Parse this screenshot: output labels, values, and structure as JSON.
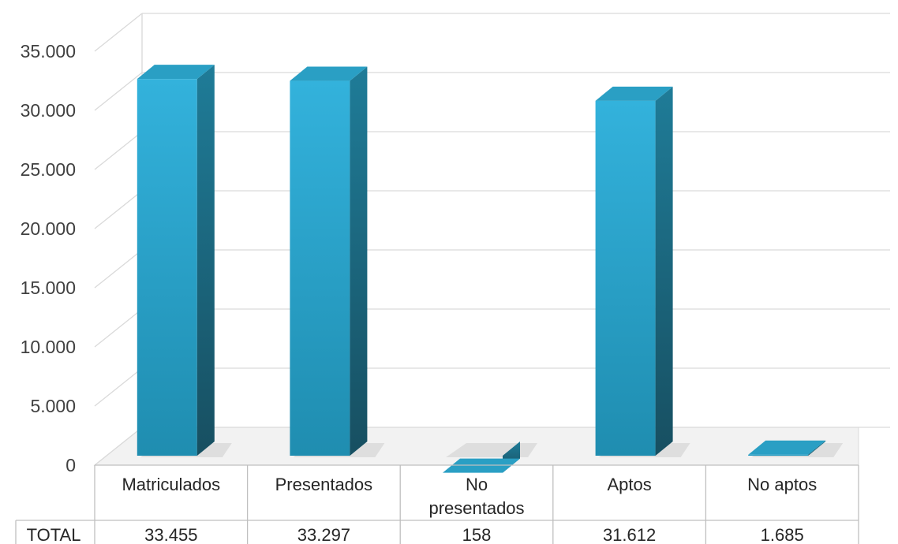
{
  "chart_data": {
    "type": "bar",
    "categories": [
      "Matriculados",
      "Presentados",
      "No presentados",
      "Aptos",
      "No aptos"
    ],
    "category_lines": [
      [
        "Matriculados"
      ],
      [
        "Presentados"
      ],
      [
        "No",
        "presentados"
      ],
      [
        "Aptos"
      ],
      [
        "No aptos"
      ]
    ],
    "series": [
      {
        "name": "TOTAL",
        "values": [
          33455,
          33297,
          158,
          31612,
          1685
        ]
      }
    ],
    "value_labels": [
      "33.455",
      "33.297",
      "158",
      "31.612",
      "1.685"
    ],
    "title": "",
    "xlabel": "",
    "ylabel": "",
    "ylim": [
      0,
      35000
    ],
    "y_ticks": [
      0,
      5000,
      10000,
      15000,
      20000,
      25000,
      30000,
      35000
    ],
    "y_tick_labels": [
      "0",
      "5.000",
      "10.000",
      "15.000",
      "20.000",
      "25.000",
      "30.000",
      "35.000"
    ],
    "grid": true,
    "style": "3d-column",
    "data_table": true,
    "colors": {
      "front_top": "#33b2dc",
      "front_bottom": "#1f8db0",
      "side": "#1c6f88",
      "top": "#2a9fc4",
      "grid": "#d9d9d9",
      "table_border": "#bfbfbf"
    }
  }
}
